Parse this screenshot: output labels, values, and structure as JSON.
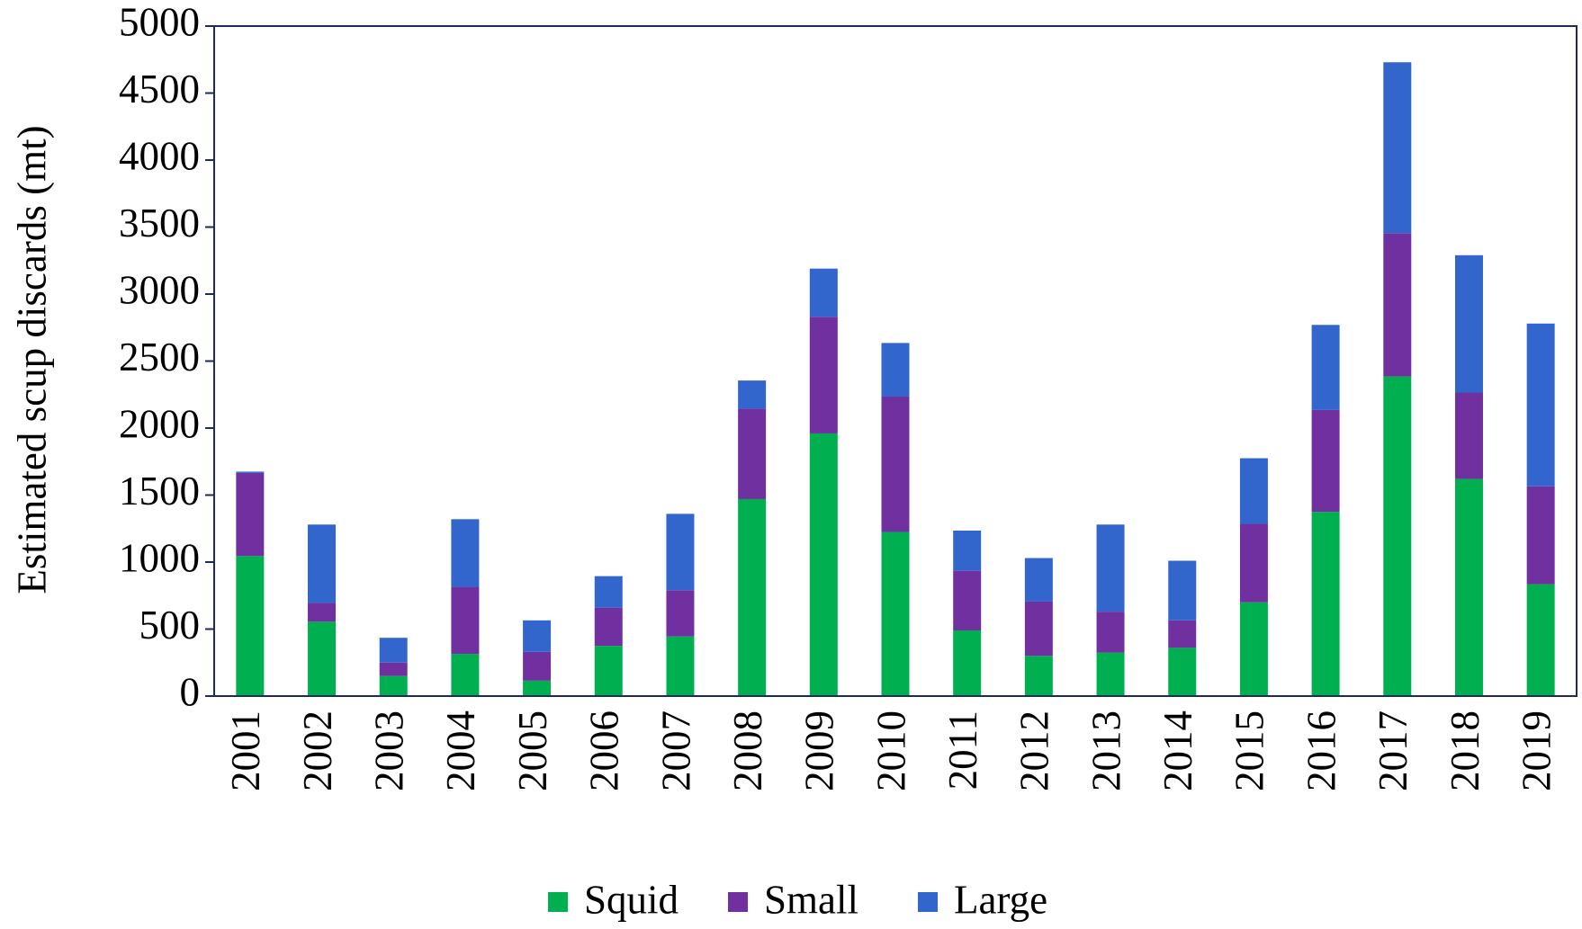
{
  "chart_data": {
    "type": "stacked_bar",
    "y_label": "Estimated scup discards (mt)",
    "categories": [
      "2001",
      "2002",
      "2003",
      "2004",
      "2005",
      "2006",
      "2007",
      "2008",
      "2009",
      "2010",
      "2011",
      "2012",
      "2013",
      "2014",
      "2015",
      "2016",
      "2017",
      "2018",
      "2019"
    ],
    "series": [
      {
        "name": "Squid",
        "color": "#00b050",
        "values": [
          1045,
          555,
          150,
          315,
          115,
          375,
          445,
          1470,
          1960,
          1225,
          490,
          300,
          325,
          360,
          700,
          1375,
          2385,
          1620,
          835
        ]
      },
      {
        "name": "Small",
        "color": "#7030a0",
        "values": [
          620,
          140,
          100,
          500,
          215,
          285,
          345,
          675,
          870,
          1010,
          445,
          405,
          305,
          205,
          585,
          760,
          1070,
          645,
          730
        ]
      },
      {
        "name": "Large",
        "color": "#3366cc",
        "values": [
          10,
          585,
          185,
          505,
          235,
          235,
          570,
          210,
          360,
          400,
          300,
          325,
          650,
          445,
          490,
          635,
          1275,
          1025,
          1215
        ]
      }
    ],
    "ylim": [
      0,
      5000
    ],
    "yticks": [
      0,
      500,
      1000,
      1500,
      2000,
      2500,
      3000,
      3500,
      4000,
      4500,
      5000
    ],
    "legend": "bottom"
  }
}
